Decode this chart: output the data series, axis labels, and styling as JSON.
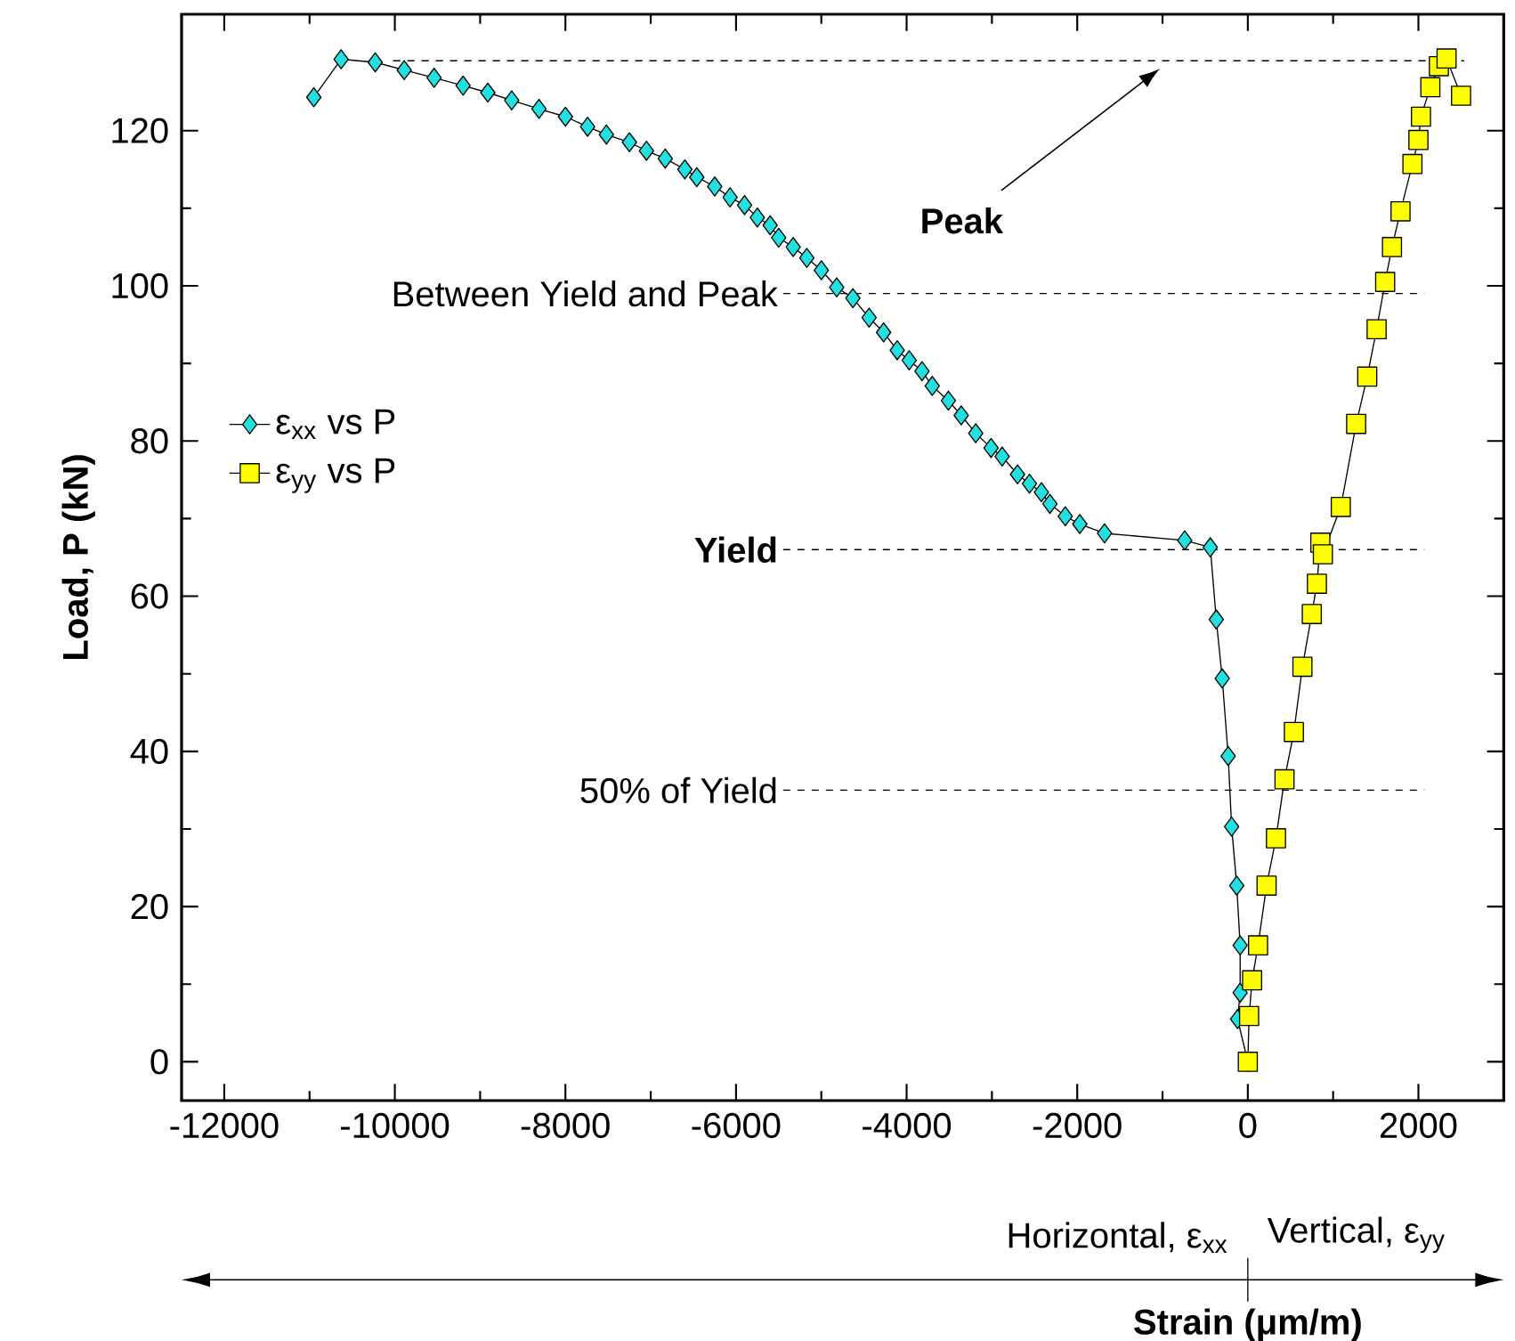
{
  "chart_data": {
    "type": "line",
    "xlabel": "Strain (μm/m)",
    "ylabel": "Load, P (kN)",
    "xlim": [
      -12500,
      3000
    ],
    "ylim": [
      -5,
      135
    ],
    "xticks": [
      -12000,
      -10000,
      -8000,
      -6000,
      -4000,
      -2000,
      0,
      2000
    ],
    "yticks": [
      0,
      20,
      40,
      60,
      80,
      100,
      120
    ],
    "legend": "left",
    "grid": false,
    "series": [
      {
        "name": "ε$_{xx}$ vs P",
        "color": "#22e0e0",
        "marker": "diamond",
        "line_style": "solid",
        "x": [
          -10950,
          -10630,
          -10230,
          -9890,
          -9540,
          -9200,
          -8910,
          -8630,
          -8310,
          -8000,
          -7740,
          -7520,
          -7250,
          -7050,
          -6830,
          -6600,
          -6460,
          -6250,
          -6070,
          -5900,
          -5750,
          -5600,
          -5500,
          -5330,
          -5170,
          -5000,
          -4820,
          -4630,
          -4440,
          -4270,
          -4110,
          -3970,
          -3820,
          -3700,
          -3510,
          -3360,
          -3190,
          -3010,
          -2880,
          -2700,
          -2560,
          -2420,
          -2320,
          -2140,
          -1970,
          -1680,
          -740,
          -440,
          -370,
          -300,
          -230,
          -190,
          -130,
          -90,
          -90,
          -120,
          0
        ],
        "values": [
          124.3,
          129.2,
          128.8,
          127.8,
          126.8,
          125.8,
          124.9,
          123.9,
          122.8,
          121.8,
          120.5,
          119.5,
          118.5,
          117.4,
          116.4,
          115.0,
          114.0,
          112.8,
          111.4,
          110.4,
          108.8,
          107.8,
          106.2,
          105.0,
          103.6,
          102.0,
          99.8,
          98.4,
          95.9,
          94.0,
          91.7,
          90.4,
          89.0,
          87.1,
          85.2,
          83.3,
          81.0,
          79.1,
          78.0,
          75.7,
          74.5,
          73.4,
          71.9,
          70.3,
          69.3,
          68.1,
          67.2,
          66.3,
          57,
          49.4,
          39.4,
          30.3,
          22.7,
          15,
          8.9,
          5.5,
          0
        ]
      },
      {
        "name": "ε$_{yy}$ vs P",
        "color": "#ffff00",
        "marker": "square",
        "line_style": "solid",
        "x": [
          0,
          15,
          50,
          120,
          220,
          330,
          430,
          540,
          640,
          750,
          810,
          850,
          880,
          1090,
          1270,
          1400,
          1510,
          1610,
          1690,
          1790,
          1930,
          2000,
          2030,
          2140,
          2240,
          2330,
          2500
        ],
        "values": [
          0,
          5.9,
          10.5,
          15,
          22.7,
          28.8,
          36.4,
          42.5,
          50.9,
          57.7,
          61.6,
          66.9,
          65.4,
          71.5,
          82.2,
          88.3,
          94.4,
          100.5,
          105,
          109.6,
          115.7,
          118.8,
          121.8,
          125.6,
          128.3,
          129.3,
          124.5
        ]
      }
    ],
    "ref_lines": [
      {
        "axis": "y",
        "value": 129,
        "line_style": "dashed"
      },
      {
        "axis": "y",
        "value": 99,
        "label": "Between Yield and Peak",
        "line_style": "dashed"
      },
      {
        "axis": "y",
        "value": 66,
        "label": "Yield",
        "line_style": "dashed"
      },
      {
        "axis": "y",
        "value": 35,
        "label": "50% of Yield",
        "line_style": "dashed"
      }
    ],
    "annotations": [
      "Peak",
      "Horizontal, ε$_{xx}$",
      "Vertical, ε$_{yy}$"
    ]
  }
}
